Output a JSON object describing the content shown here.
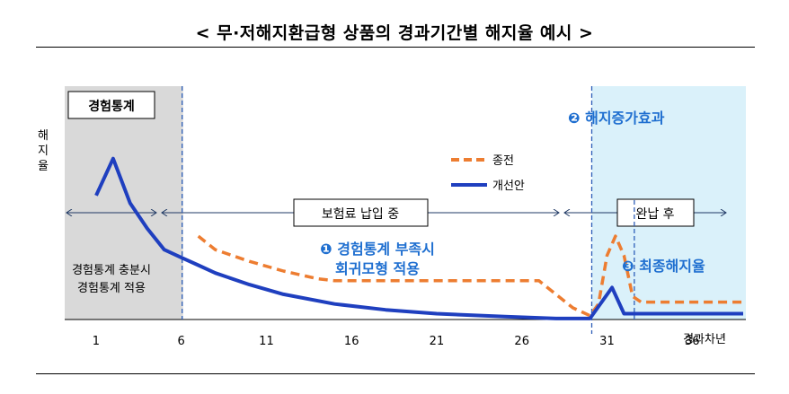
{
  "title": "< 무·저해지환급형 상품의 경과기간별 해지율 예시 >",
  "chart_data": {
    "type": "line",
    "ylabel": "해지율",
    "xlabel": "경과차년",
    "x_ticks": [
      "1",
      "6",
      "11",
      "16",
      "21",
      "26",
      "31",
      "36"
    ],
    "xlim": [
      0,
      40
    ],
    "ylim": [
      0,
      1
    ],
    "legend": {
      "position": "top-right",
      "items": [
        "종전",
        "개선안"
      ]
    },
    "series": [
      {
        "name": "종전",
        "color": "#ED7D31",
        "style": "dashed",
        "points": [
          [
            7,
            0.43
          ],
          [
            8,
            0.36
          ],
          [
            10,
            0.3
          ],
          [
            12,
            0.25
          ],
          [
            14,
            0.21
          ],
          [
            15,
            0.2
          ],
          [
            27,
            0.2
          ],
          [
            29,
            0.06
          ],
          [
            30,
            0.02
          ],
          [
            30.5,
            0.08
          ],
          [
            31,
            0.33
          ],
          [
            31.5,
            0.43
          ],
          [
            32,
            0.33
          ],
          [
            32.5,
            0.12
          ],
          [
            33,
            0.09
          ],
          [
            39,
            0.09
          ]
        ]
      },
      {
        "name": "개선안",
        "color": "#1F3FBF",
        "style": "solid",
        "points": [
          [
            1,
            0.64
          ],
          [
            2,
            0.83
          ],
          [
            3,
            0.6
          ],
          [
            4,
            0.47
          ],
          [
            5,
            0.36
          ],
          [
            6,
            0.32
          ],
          [
            7,
            0.28
          ],
          [
            8,
            0.24
          ],
          [
            10,
            0.18
          ],
          [
            12,
            0.13
          ],
          [
            15,
            0.08
          ],
          [
            18,
            0.05
          ],
          [
            21,
            0.03
          ],
          [
            25,
            0.015
          ],
          [
            28,
            0.005
          ],
          [
            30,
            0.005
          ],
          [
            31.3,
            0.165
          ],
          [
            32,
            0.03
          ],
          [
            39,
            0.03
          ]
        ]
      }
    ],
    "vlines": [
      6,
      30,
      32.5
    ],
    "regions": [
      {
        "label": "경험통계",
        "x": [
          0,
          6
        ],
        "color": "#D9D9D9"
      },
      {
        "label": "② 해지증가효과",
        "x": [
          30,
          40
        ],
        "color": "#DAF1FA"
      }
    ],
    "annotations": {
      "experience_note_line1": "경험통계 충분시",
      "experience_note_line2": "경험통계 적용",
      "premium_period": "보험료 납입 중",
      "after_payment": "완납 후",
      "note1_line1": "❶ 경험통계 부족시",
      "note1_line2": "회귀모형 적용",
      "note2": "❷ 해지증가효과",
      "note3": "❸ 최종해지율"
    }
  }
}
